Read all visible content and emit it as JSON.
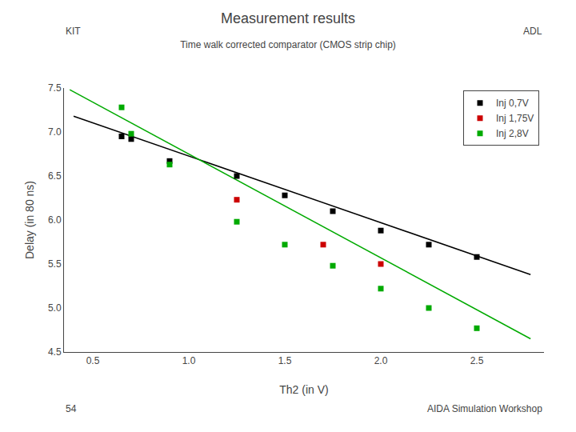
{
  "chart_data": {
    "type": "scatter",
    "title": "Measurement results",
    "subtitle": "Time walk corrected comparator (CMOS strip chip)",
    "annotations": [
      "KIT",
      "ADL",
      "54",
      "AIDA Simulation Workshop"
    ],
    "xlabel": "Th2 (in V)",
    "ylabel": "Delay (in 80 ns)",
    "xlim": [
      0.35,
      2.85
    ],
    "ylim": [
      4.5,
      7.5
    ],
    "xticks": [
      0.5,
      {
        "value": 1.0,
        "label": "1.0"
      },
      1.5,
      {
        "value": 2.0,
        "label": "2.0"
      },
      2.5
    ],
    "yticks": [
      4.5,
      {
        "value": 5.0,
        "label": "5.0"
      },
      5.5,
      {
        "value": 6.0,
        "label": "6.0"
      },
      6.5,
      {
        "value": 7.0,
        "label": "7.0"
      },
      7.5
    ],
    "grid": false,
    "legend": "upper right",
    "series": [
      {
        "type": "line",
        "line_style": "solid",
        "color": "#000000",
        "x": [
          0.4,
          2.78
        ],
        "values": [
          7.18,
          5.38
        ]
      },
      {
        "type": "line",
        "line_style": "solid",
        "color": "#00aa00",
        "x": [
          0.38,
          2.78
        ],
        "values": [
          7.48,
          4.65
        ]
      },
      {
        "name": "Inj 0,7V",
        "type": "scatter",
        "marker": "square",
        "color": "#000000",
        "x": [
          0.65,
          0.7,
          0.9,
          1.25,
          1.5,
          1.75,
          2.0,
          2.25,
          2.5
        ],
        "values": [
          6.95,
          6.92,
          6.67,
          6.5,
          6.28,
          6.1,
          5.88,
          5.72,
          5.58
        ]
      },
      {
        "name": "Inj 1,75V",
        "type": "scatter",
        "marker": "square",
        "color": "#cc0000",
        "x": [
          1.25,
          1.7,
          2.0
        ],
        "values": [
          6.23,
          5.72,
          5.5
        ]
      },
      {
        "name": "Inj 2,8V",
        "type": "scatter",
        "marker": "square",
        "color": "#00aa00",
        "x": [
          0.65,
          0.7,
          0.9,
          1.25,
          1.5,
          1.75,
          2.0,
          2.25,
          2.5
        ],
        "values": [
          7.28,
          6.98,
          6.63,
          5.98,
          5.72,
          5.48,
          5.22,
          5.0,
          4.77
        ]
      }
    ]
  }
}
